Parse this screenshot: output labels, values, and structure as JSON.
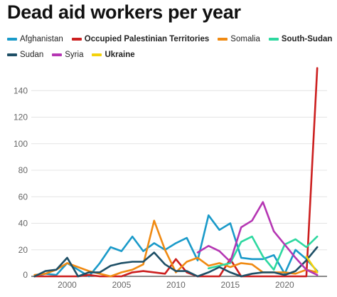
{
  "chart_data": {
    "type": "line",
    "title": "Dead aid workers per year",
    "xlabel": "",
    "ylabel": "",
    "xlim": [
      1996.7,
      2023.9
    ],
    "ylim": [
      0,
      160
    ],
    "yticks": [
      0,
      20,
      40,
      60,
      80,
      100,
      120,
      140
    ],
    "xticks": [
      2000,
      2005,
      2010,
      2015,
      2020
    ],
    "grid": "horizontal",
    "legend_placement": "top",
    "x": [
      1997,
      1998,
      1999,
      2000,
      2001,
      2002,
      2003,
      2004,
      2005,
      2006,
      2007,
      2008,
      2009,
      2010,
      2011,
      2012,
      2013,
      2014,
      2015,
      2016,
      2017,
      2018,
      2019,
      2020,
      2021,
      2022,
      2023
    ],
    "series": [
      {
        "name": "Afghanistan",
        "color": "#1a9ac9",
        "bold": false,
        "values": [
          0,
          2,
          1,
          10,
          5,
          0,
          10,
          22,
          19,
          30,
          19,
          25,
          20,
          25,
          29,
          12,
          46,
          35,
          40,
          14,
          13,
          13,
          16,
          2,
          20,
          13,
          4
        ]
      },
      {
        "name": "Occupied Palestinian Territories",
        "color": "#cc1f1f",
        "bold": true,
        "values": [
          0,
          0,
          0,
          0,
          0,
          1,
          0,
          0,
          0,
          3,
          4,
          3,
          2,
          13,
          3,
          0,
          0,
          0,
          13,
          0,
          0,
          0,
          0,
          0,
          0,
          0,
          157
        ]
      },
      {
        "name": "Somalia",
        "color": "#f08a12",
        "bold": false,
        "values": [
          1,
          2,
          5,
          10,
          7,
          4,
          2,
          0,
          3,
          5,
          9,
          42,
          20,
          3,
          11,
          14,
          8,
          10,
          7,
          10,
          9,
          3,
          3,
          3,
          2,
          5,
          3
        ]
      },
      {
        "name": "South-Sudan",
        "color": "#2ed8a0",
        "bold": true,
        "values": [
          null,
          null,
          null,
          null,
          null,
          null,
          null,
          null,
          null,
          null,
          null,
          null,
          null,
          null,
          null,
          null,
          6,
          8,
          10,
          26,
          30,
          15,
          5,
          24,
          28,
          22,
          30
        ]
      },
      {
        "name": "Sudan",
        "color": "#1e4f66",
        "bold": false,
        "values": [
          0,
          4,
          5,
          14,
          0,
          3,
          3,
          8,
          10,
          11,
          11,
          18,
          9,
          4,
          4,
          0,
          3,
          7,
          3,
          0,
          2,
          3,
          3,
          1,
          4,
          12,
          22
        ]
      },
      {
        "name": "Syria",
        "color": "#b536b3",
        "bold": false,
        "values": [
          null,
          null,
          null,
          null,
          null,
          null,
          null,
          null,
          null,
          null,
          null,
          null,
          null,
          null,
          null,
          18,
          23,
          19,
          11,
          37,
          42,
          56,
          34,
          24,
          14,
          5,
          1
        ]
      },
      {
        "name": "Ukraine",
        "color": "#f4d20c",
        "bold": true,
        "values": [
          null,
          null,
          null,
          null,
          null,
          null,
          null,
          null,
          null,
          null,
          null,
          null,
          null,
          null,
          null,
          null,
          null,
          null,
          null,
          null,
          null,
          null,
          null,
          null,
          null,
          15,
          3
        ]
      }
    ]
  }
}
